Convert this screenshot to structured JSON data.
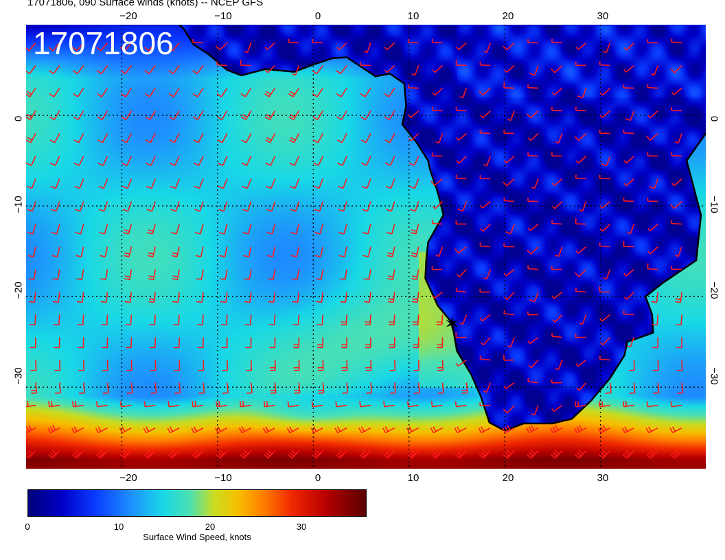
{
  "header": {
    "title": "17071806, 090 Surface winds (knots) -- NCEP GFS"
  },
  "map": {
    "stamp": "17071806",
    "lon_ticks": [
      "−20",
      "−10",
      "0",
      "10",
      "20",
      "30"
    ],
    "lon_ticks_top": [
      "−20",
      "−10",
      "0",
      "10",
      "20",
      "30"
    ],
    "lat_ticks": [
      "0",
      "−10",
      "−20",
      "−30"
    ],
    "lat_ticks_right": [
      "0",
      "−10",
      "−20",
      "−30"
    ],
    "extent": {
      "lon": [
        -30,
        41
      ],
      "lat": [
        -39,
        10
      ]
    },
    "grid": true,
    "barb_color": "#ff1a1a",
    "coast_color": "#000000",
    "marker": {
      "symbol": "✶",
      "lon": 14.5,
      "lat": -23
    }
  },
  "colorbar": {
    "ticks": [
      "0",
      "10",
      "20",
      "30"
    ],
    "range": [
      0,
      37
    ],
    "label": "Surface Wind Speed, knots",
    "stops": [
      "#00007a",
      "#0000c8",
      "#0a3cff",
      "#1e8cff",
      "#18d8e6",
      "#4ee0b0",
      "#c8dc20",
      "#f6c000",
      "#ff7a00",
      "#f02800",
      "#b80000",
      "#5a0000"
    ]
  }
}
